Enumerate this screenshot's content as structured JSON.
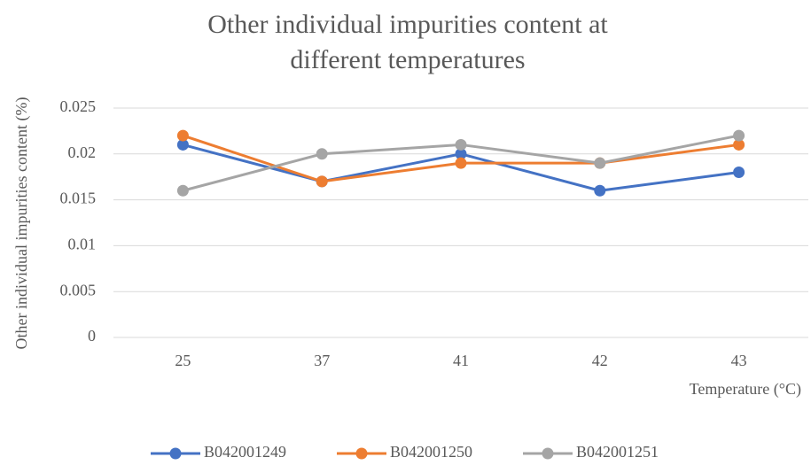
{
  "chart_data": {
    "type": "line",
    "title": "Other individual impurities content at different temperatures",
    "x_label": "Temperature (°C)",
    "y_label": "Other individual impurities content (%)",
    "categories": [
      "25",
      "37",
      "41",
      "42",
      "43"
    ],
    "series": [
      {
        "name": "B042001249",
        "color": "#4472c4",
        "values": [
          0.021,
          0.017,
          0.02,
          0.016,
          0.018
        ]
      },
      {
        "name": "B042001250",
        "color": "#ed7d31",
        "values": [
          0.022,
          0.017,
          0.019,
          0.019,
          0.021
        ]
      },
      {
        "name": "B042001251",
        "color": "#a5a5a5",
        "values": [
          0.016,
          0.02,
          0.021,
          0.019,
          0.022
        ]
      }
    ],
    "ylim": [
      0,
      0.025
    ],
    "yticks": [
      0,
      0.005,
      0.01,
      0.015,
      0.02,
      0.025
    ],
    "grid": true,
    "legend": "bottom"
  }
}
